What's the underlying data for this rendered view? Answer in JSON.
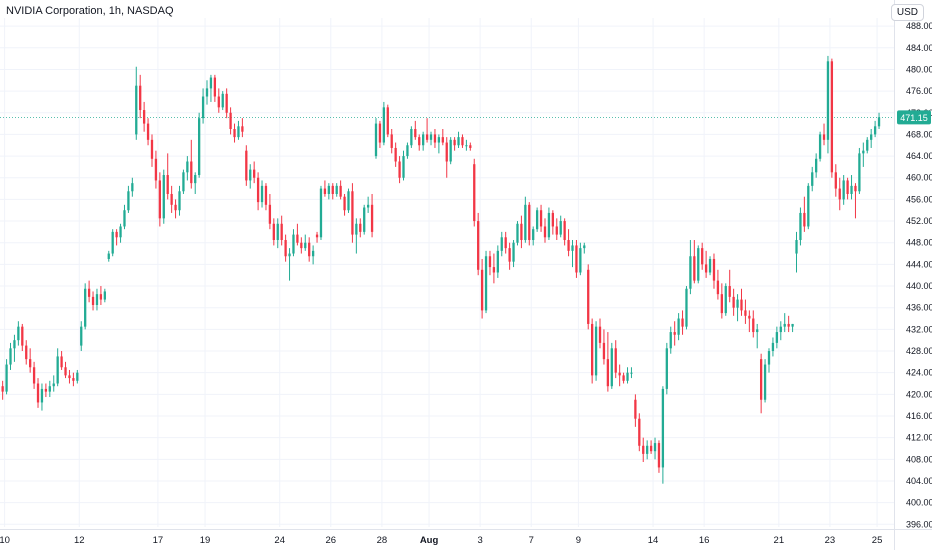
{
  "header": {
    "title": "NVIDIA Corporation, 1h, NASDAQ",
    "currency": "USD"
  },
  "price_badge": {
    "label": "471.15",
    "color": "#22ab94"
  },
  "colors": {
    "up": "#22ab94",
    "down": "#f23645",
    "grid": "#f0f3fa",
    "axis_text": "#131722"
  },
  "chart_data": {
    "type": "candlestick",
    "title": "NVIDIA Corporation, 1h, NASDAQ",
    "currency": "USD",
    "last_price": 471.15,
    "ylim": [
      395.5,
      489.5
    ],
    "yticks": [
      "396.00",
      "400.00",
      "404.00",
      "408.00",
      "412.00",
      "416.00",
      "420.00",
      "424.00",
      "428.00",
      "432.00",
      "436.00",
      "440.00",
      "444.00",
      "448.00",
      "452.00",
      "456.00",
      "460.00",
      "464.00",
      "468.00",
      "472.00",
      "476.00",
      "480.00",
      "484.00",
      "488.00"
    ],
    "xticks": [
      {
        "label": "10",
        "pos": 0.5
      },
      {
        "label": "12",
        "pos": 19.5
      },
      {
        "label": "17",
        "pos": 39.5
      },
      {
        "label": "19",
        "pos": 51.5
      },
      {
        "label": "24",
        "pos": 70.5
      },
      {
        "label": "26",
        "pos": 83.5
      },
      {
        "label": "28",
        "pos": 96.5
      },
      {
        "label": "Aug",
        "pos": 108.5,
        "bold": true
      },
      {
        "label": "3",
        "pos": 121.5
      },
      {
        "label": "7",
        "pos": 134.5
      },
      {
        "label": "9",
        "pos": 146.5
      },
      {
        "label": "14",
        "pos": 165.5
      },
      {
        "label": "16",
        "pos": 178.5
      },
      {
        "label": "21",
        "pos": 197.5
      },
      {
        "label": "23",
        "pos": 210.5
      },
      {
        "label": "25",
        "pos": 222.5
      }
    ],
    "candles": [
      [
        421.5,
        422.5,
        419.0,
        420.5
      ],
      [
        420.5,
        426.5,
        420.0,
        425.5
      ],
      [
        425.5,
        429.5,
        424.5,
        428.5
      ],
      [
        428.5,
        431.0,
        426.0,
        430.0
      ],
      [
        430.0,
        433.5,
        429.0,
        432.5
      ],
      [
        432.5,
        433.0,
        428.0,
        429.0
      ],
      [
        429.0,
        430.0,
        425.5,
        426.5
      ],
      [
        426.5,
        428.5,
        424.0,
        425.0
      ],
      [
        425.0,
        426.0,
        421.0,
        422.0
      ],
      [
        422.0,
        423.0,
        417.5,
        418.5
      ],
      [
        418.5,
        422.0,
        417.0,
        421.0
      ],
      [
        421.0,
        422.0,
        419.5,
        420.5
      ],
      [
        420.5,
        422.5,
        419.5,
        421.5
      ],
      [
        421.5,
        423.5,
        420.5,
        422.0
      ],
      [
        422.0,
        428.5,
        421.5,
        427.0
      ],
      [
        427.0,
        428.0,
        424.5,
        425.0
      ],
      [
        425.0,
        426.0,
        423.0,
        423.5
      ],
      [
        423.5,
        424.5,
        422.0,
        423.0
      ],
      [
        423.0,
        424.0,
        421.5,
        422.5
      ],
      [
        422.5,
        424.5,
        422.0,
        424.0
      ],
      [
        429.0,
        433.5,
        428.0,
        432.5
      ],
      [
        432.5,
        440.5,
        432.0,
        439.5
      ],
      [
        439.5,
        441.0,
        437.0,
        438.0
      ],
      [
        438.0,
        439.0,
        435.5,
        436.5
      ],
      [
        436.5,
        439.5,
        435.5,
        438.5
      ],
      [
        438.5,
        440.0,
        436.5,
        437.5
      ],
      [
        437.5,
        439.5,
        437.0,
        439.0
      ],
      [
        445.0,
        446.5,
        444.5,
        446.0
      ],
      [
        446.0,
        450.5,
        445.5,
        450.0
      ],
      [
        450.0,
        450.5,
        447.5,
        449.0
      ],
      [
        449.0,
        451.5,
        448.0,
        451.0
      ],
      [
        451.0,
        455.0,
        450.5,
        454.0
      ],
      [
        454.0,
        458.5,
        453.5,
        457.5
      ],
      [
        457.5,
        460.0,
        456.5,
        459.0
      ],
      [
        468.0,
        480.5,
        467.0,
        477.0
      ],
      [
        477.0,
        479.0,
        471.0,
        472.5
      ],
      [
        472.5,
        474.0,
        468.5,
        470.0
      ],
      [
        470.0,
        471.0,
        466.0,
        467.0
      ],
      [
        467.0,
        468.0,
        462.0,
        463.5
      ],
      [
        463.5,
        465.0,
        458.0,
        459.5
      ],
      [
        459.5,
        461.0,
        451.0,
        452.5
      ],
      [
        452.5,
        461.5,
        451.5,
        460.5
      ],
      [
        460.5,
        464.5,
        456.0,
        457.0
      ],
      [
        457.0,
        458.5,
        453.5,
        455.0
      ],
      [
        455.0,
        456.0,
        452.5,
        454.0
      ],
      [
        454.0,
        458.5,
        453.0,
        457.5
      ],
      [
        457.5,
        461.5,
        457.0,
        461.0
      ],
      [
        461.0,
        464.0,
        459.5,
        463.0
      ],
      [
        463.0,
        467.0,
        458.0,
        459.0
      ],
      [
        459.0,
        461.0,
        457.0,
        460.5
      ],
      [
        460.5,
        472.0,
        460.0,
        471.0
      ],
      [
        471.0,
        476.5,
        470.0,
        475.0
      ],
      [
        475.0,
        478.0,
        473.5,
        476.5
      ],
      [
        476.5,
        479.0,
        474.0,
        478.5
      ],
      [
        478.5,
        479.0,
        474.0,
        475.0
      ],
      [
        475.0,
        476.5,
        472.0,
        473.0
      ],
      [
        473.0,
        476.0,
        472.5,
        475.5
      ],
      [
        475.5,
        476.5,
        471.0,
        472.0
      ],
      [
        472.0,
        473.0,
        468.0,
        469.0
      ],
      [
        469.0,
        470.0,
        466.5,
        467.5
      ],
      [
        467.5,
        470.5,
        467.0,
        469.5
      ],
      [
        469.5,
        471.0,
        467.5,
        468.5
      ],
      [
        465.0,
        466.0,
        458.5,
        459.5
      ],
      [
        459.5,
        462.5,
        458.0,
        461.5
      ],
      [
        461.5,
        463.0,
        459.0,
        460.0
      ],
      [
        460.0,
        461.0,
        454.0,
        455.5
      ],
      [
        455.5,
        459.5,
        454.5,
        458.5
      ],
      [
        458.5,
        459.0,
        454.0,
        455.0
      ],
      [
        455.0,
        457.0,
        450.5,
        451.5
      ],
      [
        451.5,
        452.5,
        447.5,
        448.5
      ],
      [
        448.5,
        452.5,
        447.0,
        451.5
      ],
      [
        451.5,
        453.0,
        447.5,
        448.5
      ],
      [
        448.5,
        449.5,
        444.5,
        445.5
      ],
      [
        445.5,
        447.0,
        441.0,
        446.0
      ],
      [
        446.0,
        450.5,
        445.5,
        449.5
      ],
      [
        449.5,
        451.5,
        447.5,
        448.0
      ],
      [
        448.0,
        449.0,
        446.0,
        447.0
      ],
      [
        447.0,
        449.5,
        446.5,
        448.0
      ],
      [
        448.0,
        449.0,
        444.5,
        445.5
      ],
      [
        445.5,
        447.5,
        444.0,
        446.5
      ],
      [
        449.5,
        450.0,
        448.0,
        449.0
      ],
      [
        449.0,
        458.5,
        448.5,
        458.0
      ],
      [
        458.0,
        459.5,
        456.5,
        457.0
      ],
      [
        457.0,
        459.0,
        456.0,
        458.5
      ],
      [
        458.5,
        459.0,
        456.0,
        457.0
      ],
      [
        457.0,
        459.0,
        456.5,
        458.5
      ],
      [
        458.5,
        459.5,
        456.0,
        456.5
      ],
      [
        456.5,
        457.0,
        453.0,
        454.0
      ],
      [
        454.0,
        458.0,
        453.5,
        457.5
      ],
      [
        457.5,
        459.0,
        448.0,
        449.5
      ],
      [
        449.5,
        452.5,
        446.0,
        451.5
      ],
      [
        451.5,
        452.5,
        449.0,
        450.0
      ],
      [
        450.0,
        455.0,
        449.5,
        454.5
      ],
      [
        454.5,
        456.5,
        453.5,
        455.0
      ],
      [
        455.0,
        457.0,
        449.0,
        450.0
      ],
      [
        464.0,
        471.0,
        463.5,
        470.0
      ],
      [
        470.0,
        470.5,
        465.5,
        466.5
      ],
      [
        466.5,
        474.0,
        466.0,
        473.0
      ],
      [
        473.0,
        473.5,
        467.5,
        468.0
      ],
      [
        468.0,
        469.0,
        464.5,
        465.5
      ],
      [
        465.5,
        466.5,
        462.0,
        463.0
      ],
      [
        463.0,
        464.0,
        459.0,
        460.0
      ],
      [
        460.0,
        465.0,
        459.5,
        464.0
      ],
      [
        464.0,
        466.5,
        463.5,
        466.0
      ],
      [
        466.0,
        469.5,
        465.5,
        469.0
      ],
      [
        469.0,
        470.5,
        467.0,
        467.5
      ],
      [
        467.5,
        468.0,
        465.0,
        466.0
      ],
      [
        466.0,
        468.5,
        465.0,
        468.0
      ],
      [
        468.0,
        471.0,
        466.5,
        467.0
      ],
      [
        467.0,
        468.5,
        466.0,
        468.0
      ],
      [
        468.0,
        469.0,
        465.5,
        466.5
      ],
      [
        466.5,
        468.0,
        464.5,
        467.5
      ],
      [
        467.5,
        469.0,
        466.0,
        466.5
      ],
      [
        466.5,
        467.5,
        460.0,
        463.0
      ],
      [
        463.0,
        467.5,
        462.5,
        467.0
      ],
      [
        467.0,
        467.5,
        465.0,
        466.0
      ],
      [
        466.0,
        468.5,
        465.5,
        467.5
      ],
      [
        467.5,
        468.0,
        465.5,
        466.0
      ],
      [
        466.0,
        467.0,
        465.0,
        466.0
      ],
      [
        466.0,
        466.5,
        465.0,
        465.5
      ],
      [
        462.5,
        463.5,
        451.0,
        452.0
      ],
      [
        452.0,
        453.5,
        442.0,
        443.0
      ],
      [
        443.0,
        445.0,
        434.0,
        435.5
      ],
      [
        435.5,
        446.5,
        435.0,
        445.5
      ],
      [
        445.5,
        446.5,
        442.0,
        443.5
      ],
      [
        443.5,
        446.0,
        440.5,
        442.5
      ],
      [
        442.5,
        447.5,
        441.5,
        446.5
      ],
      [
        446.5,
        450.0,
        445.5,
        449.0
      ],
      [
        449.0,
        450.0,
        446.0,
        447.0
      ],
      [
        447.0,
        448.0,
        443.0,
        444.5
      ],
      [
        444.5,
        448.5,
        443.5,
        448.0
      ],
      [
        448.0,
        452.0,
        447.5,
        451.5
      ],
      [
        451.5,
        453.0,
        447.0,
        448.5
      ],
      [
        448.5,
        456.5,
        448.0,
        455.0
      ],
      [
        455.0,
        455.5,
        447.5,
        448.5
      ],
      [
        448.5,
        451.0,
        447.5,
        450.5
      ],
      [
        450.5,
        454.5,
        450.0,
        454.0
      ],
      [
        454.0,
        455.0,
        450.0,
        451.0
      ],
      [
        451.0,
        452.5,
        448.0,
        449.0
      ],
      [
        449.0,
        454.5,
        448.5,
        453.5
      ],
      [
        453.5,
        454.0,
        449.5,
        451.0
      ],
      [
        451.0,
        452.5,
        448.5,
        449.5
      ],
      [
        449.5,
        453.0,
        449.0,
        452.0
      ],
      [
        452.0,
        452.5,
        447.5,
        448.5
      ],
      [
        448.5,
        450.5,
        445.5,
        446.5
      ],
      [
        446.5,
        448.5,
        443.5,
        447.5
      ],
      [
        447.5,
        448.5,
        441.5,
        442.5
      ],
      [
        442.5,
        448.0,
        442.0,
        447.0
      ],
      [
        447.0,
        448.0,
        446.0,
        447.5
      ],
      [
        443.0,
        444.0,
        432.0,
        433.0
      ],
      [
        433.0,
        434.0,
        422.0,
        423.5
      ],
      [
        423.5,
        433.5,
        422.5,
        432.5
      ],
      [
        432.5,
        434.0,
        428.5,
        429.5
      ],
      [
        429.5,
        432.0,
        425.5,
        426.5
      ],
      [
        426.5,
        431.5,
        420.5,
        421.5
      ],
      [
        421.5,
        429.5,
        421.0,
        428.5
      ],
      [
        428.5,
        430.0,
        423.0,
        424.0
      ],
      [
        424.0,
        425.5,
        421.5,
        423.5
      ],
      [
        423.5,
        424.0,
        422.0,
        422.5
      ],
      [
        422.5,
        425.0,
        422.0,
        424.0
      ],
      [
        424.0,
        425.0,
        423.0,
        424.0
      ],
      [
        419.0,
        420.0,
        414.0,
        415.5
      ],
      [
        415.5,
        416.5,
        409.5,
        410.5
      ],
      [
        410.5,
        412.0,
        407.5,
        409.0
      ],
      [
        409.0,
        411.5,
        408.0,
        410.5
      ],
      [
        410.5,
        411.5,
        409.0,
        409.5
      ],
      [
        409.5,
        412.0,
        408.0,
        411.0
      ],
      [
        411.0,
        411.5,
        405.5,
        406.5
      ],
      [
        406.5,
        421.5,
        403.5,
        421.0
      ],
      [
        421.0,
        429.5,
        420.0,
        428.5
      ],
      [
        428.5,
        432.5,
        427.5,
        431.5
      ],
      [
        431.5,
        433.5,
        429.0,
        431.0
      ],
      [
        431.0,
        435.0,
        430.0,
        434.0
      ],
      [
        434.0,
        435.5,
        431.0,
        432.5
      ],
      [
        432.5,
        440.0,
        432.0,
        439.5
      ],
      [
        439.5,
        448.5,
        438.5,
        445.5
      ],
      [
        445.5,
        448.5,
        440.5,
        441.0
      ],
      [
        441.0,
        447.5,
        440.5,
        447.0
      ],
      [
        447.0,
        448.0,
        443.0,
        444.0
      ],
      [
        444.0,
        446.5,
        441.5,
        442.5
      ],
      [
        442.5,
        445.5,
        442.0,
        445.0
      ],
      [
        445.0,
        446.0,
        439.5,
        441.0
      ],
      [
        441.0,
        443.0,
        437.5,
        438.5
      ],
      [
        438.5,
        440.5,
        434.0,
        435.0
      ],
      [
        435.0,
        440.5,
        434.5,
        440.0
      ],
      [
        440.0,
        443.0,
        437.0,
        438.0
      ],
      [
        438.0,
        439.5,
        434.5,
        436.0
      ],
      [
        436.0,
        438.5,
        433.5,
        437.5
      ],
      [
        437.5,
        439.5,
        434.5,
        435.5
      ],
      [
        435.5,
        437.5,
        433.0,
        434.5
      ],
      [
        434.5,
        435.5,
        431.5,
        434.0
      ],
      [
        434.0,
        435.5,
        430.5,
        431.5
      ],
      [
        431.5,
        433.0,
        428.5,
        432.0
      ],
      [
        426.5,
        427.5,
        416.5,
        419.0
      ],
      [
        419.0,
        426.5,
        418.5,
        425.5
      ],
      [
        425.5,
        428.5,
        424.0,
        428.0
      ],
      [
        428.0,
        430.5,
        427.0,
        429.5
      ],
      [
        429.5,
        432.5,
        428.5,
        431.5
      ],
      [
        431.5,
        433.5,
        430.0,
        432.5
      ],
      [
        432.5,
        435.0,
        431.5,
        433.0
      ],
      [
        433.0,
        434.5,
        431.5,
        432.5
      ],
      [
        432.5,
        433.0,
        431.5,
        433.0
      ],
      [
        446.0,
        450.0,
        442.5,
        448.5
      ],
      [
        448.5,
        454.5,
        447.5,
        453.5
      ],
      [
        453.5,
        456.5,
        450.0,
        451.0
      ],
      [
        451.0,
        459.0,
        450.5,
        458.5
      ],
      [
        458.5,
        462.0,
        457.5,
        461.0
      ],
      [
        461.0,
        464.5,
        460.0,
        463.5
      ],
      [
        463.5,
        468.5,
        463.0,
        468.0
      ],
      [
        468.0,
        470.0,
        466.0,
        467.0
      ],
      [
        467.0,
        482.5,
        464.5,
        481.5
      ],
      [
        481.5,
        482.0,
        460.0,
        461.0
      ],
      [
        461.0,
        462.5,
        456.5,
        458.0
      ],
      [
        458.0,
        460.0,
        454.0,
        456.0
      ],
      [
        456.0,
        460.5,
        455.0,
        459.5
      ],
      [
        459.5,
        460.0,
        456.0,
        457.0
      ],
      [
        457.0,
        460.5,
        456.0,
        458.5
      ],
      [
        458.5,
        459.0,
        452.5,
        457.5
      ],
      [
        457.5,
        465.5,
        457.0,
        464.5
      ],
      [
        464.5,
        466.5,
        462.0,
        465.0
      ],
      [
        465.0,
        467.5,
        464.5,
        467.0
      ],
      [
        467.0,
        469.0,
        465.5,
        468.0
      ],
      [
        468.0,
        470.5,
        467.5,
        469.5
      ],
      [
        469.5,
        472.0,
        469.0,
        471.15
      ]
    ]
  }
}
